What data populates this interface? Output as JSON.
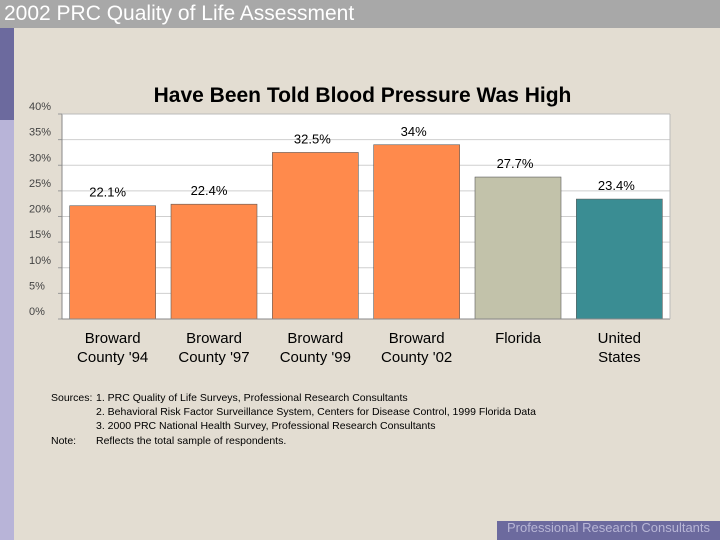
{
  "header": {
    "title": "2002 PRC Quality of Life Assessment"
  },
  "chart_data": {
    "type": "bar",
    "title": "Have Been Told Blood Pressure Was High",
    "categories": [
      [
        "Broward",
        "County '94"
      ],
      [
        "Broward",
        "County '97"
      ],
      [
        "Broward",
        "County '99"
      ],
      [
        "Broward",
        "County '02"
      ],
      [
        "Florida"
      ],
      [
        "United",
        "States"
      ]
    ],
    "values": [
      22.1,
      22.4,
      32.5,
      34,
      27.7,
      23.4
    ],
    "value_labels": [
      "22.1%",
      "22.4%",
      "32.5%",
      "34%",
      "27.7%",
      "23.4%"
    ],
    "colors": [
      "#ff8a4c",
      "#ff8a4c",
      "#ff8a4c",
      "#ff8a4c",
      "#c2c2aa",
      "#3a8d93"
    ],
    "yticks": [
      0,
      5,
      10,
      15,
      20,
      25,
      30,
      35,
      40
    ],
    "ytick_labels": [
      "0%",
      "5%",
      "10%",
      "15%",
      "20%",
      "25%",
      "30%",
      "35%",
      "40%"
    ],
    "ylim": [
      0,
      40
    ],
    "xlabel": "",
    "ylabel": "",
    "grid": true
  },
  "notes": {
    "sources_label": "Sources:",
    "sources": [
      "1. PRC Quality of Life Surveys, Professional Research Consultants",
      "2. Behavioral Risk Factor Surveillance System, Centers for Disease Control, 1999 Florida Data",
      "3. 2000 PRC National Health Survey, Professional Research Consultants"
    ],
    "note_label": "Note:",
    "note": "Reflects the total sample of respondents."
  },
  "footer": {
    "text": "Professional Research Consultants"
  }
}
